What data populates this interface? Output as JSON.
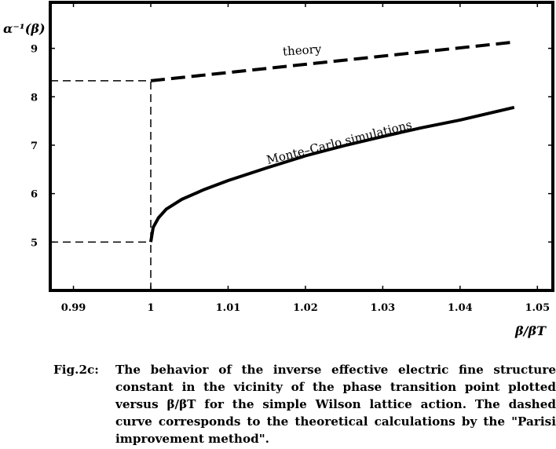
{
  "chart_data": {
    "type": "line",
    "xlim": [
      0.987,
      1.052
    ],
    "ylim": [
      4.0,
      9.95
    ],
    "xticks": [
      "0.99",
      "1",
      "1.01",
      "1.02",
      "1.03",
      "1.04",
      "1.05"
    ],
    "yticks": [
      "5",
      "6",
      "7",
      "8",
      "9"
    ],
    "xlabel": "β/βT",
    "ylabel": "α⁻¹(β)",
    "grid": false,
    "series": [
      {
        "name": "theory",
        "style": "dashed",
        "x": [
          1.0,
          1.047
        ],
        "y": [
          8.33,
          9.13
        ]
      },
      {
        "name": "Monte–Carlo simulations",
        "style": "solid",
        "x": [
          1.0,
          1.0003,
          1.001,
          1.002,
          1.004,
          1.007,
          1.01,
          1.015,
          1.02,
          1.025,
          1.03,
          1.035,
          1.04,
          1.047
        ],
        "y": [
          5.0,
          5.3,
          5.5,
          5.68,
          5.88,
          6.09,
          6.27,
          6.53,
          6.78,
          6.99,
          7.18,
          7.36,
          7.52,
          7.78
        ]
      }
    ],
    "guides": [
      {
        "x": [
          0.987,
          1.0
        ],
        "y": [
          8.33,
          8.33
        ]
      },
      {
        "x": [
          0.987,
          1.0
        ],
        "y": [
          5.0,
          5.0
        ]
      },
      {
        "x": [
          1.0,
          1.0
        ],
        "y": [
          4.0,
          8.33
        ]
      }
    ],
    "annotations": [
      {
        "text": "theory",
        "x": 1.0196,
        "y": 8.88,
        "angle": -4
      },
      {
        "text": "Monte–Carlo simulations",
        "x": 1.0245,
        "y": 6.98,
        "angle": -14
      }
    ]
  },
  "caption": {
    "label": "Fig.2c:",
    "text": "The behavior of the inverse effective electric fine structure constant in the vicinity of the phase transition point plotted versus β/βT for the simple Wilson lattice action. The dashed curve corresponds to the theoretical calculations by the \"Parisi improvement method\"."
  }
}
